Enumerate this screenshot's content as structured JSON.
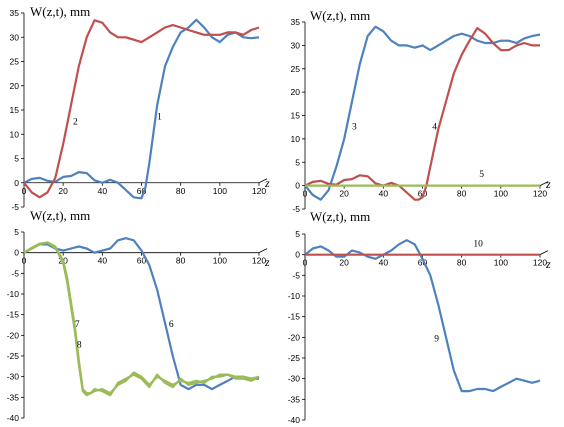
{
  "chart_data": [
    {
      "type": "line",
      "ylabel": "W(z,t), mm",
      "xlabel": "z",
      "xlim": [
        0,
        120
      ],
      "ylim": [
        -5,
        35
      ],
      "xticks": [
        0,
        20,
        40,
        60,
        80,
        100,
        120
      ],
      "yticks": [
        -5,
        0,
        5,
        10,
        15,
        20,
        25,
        30,
        35
      ],
      "grid": false,
      "series": [
        {
          "name": "1",
          "color": "#4f81bd",
          "x": [
            0,
            4,
            8,
            12,
            16,
            20,
            24,
            28,
            32,
            36,
            40,
            44,
            48,
            52,
            56,
            60,
            62,
            64,
            68,
            72,
            76,
            80,
            84,
            88,
            92,
            96,
            100,
            104,
            108,
            112,
            116,
            120
          ],
          "y": [
            0,
            0.8,
            1,
            0.4,
            0.2,
            1.2,
            1.4,
            2.2,
            2,
            0.5,
            0,
            0.6,
            0,
            -1.5,
            -3,
            -3.2,
            -1,
            4,
            16,
            24,
            28,
            31,
            32,
            33.6,
            32,
            30,
            29,
            30.5,
            31,
            30,
            29.8,
            30
          ]
        },
        {
          "name": "2",
          "color": "#c0504d",
          "x": [
            0,
            4,
            8,
            12,
            16,
            20,
            24,
            28,
            32,
            36,
            40,
            44,
            48,
            52,
            56,
            60,
            64,
            68,
            72,
            76,
            80,
            84,
            88,
            92,
            96,
            100,
            104,
            108,
            112,
            116,
            120
          ],
          "y": [
            0,
            -2,
            -3,
            -2,
            1,
            8,
            16,
            24,
            30,
            33.5,
            33,
            31,
            30,
            30,
            29.5,
            29,
            30,
            31,
            32,
            32.5,
            32,
            31.5,
            31,
            30.5,
            30.5,
            30.5,
            31,
            31,
            30.5,
            31.5,
            32
          ]
        }
      ],
      "labels": [
        {
          "text": "1",
          "x": 68,
          "y": 13
        },
        {
          "text": "2",
          "x": 25,
          "y": 12
        }
      ]
    },
    {
      "type": "line",
      "ylabel": "W(z,t), mm",
      "xlabel": "z",
      "xlim": [
        0,
        120
      ],
      "ylim": [
        -5,
        35
      ],
      "xticks": [
        0,
        20,
        40,
        60,
        80,
        100,
        120
      ],
      "yticks": [
        -5,
        0,
        5,
        10,
        15,
        20,
        25,
        30,
        35
      ],
      "grid": false,
      "series": [
        {
          "name": "3",
          "color": "#4f81bd",
          "x": [
            0,
            4,
            8,
            12,
            16,
            20,
            24,
            28,
            32,
            36,
            40,
            44,
            48,
            52,
            56,
            60,
            64,
            68,
            72,
            76,
            80,
            84,
            88,
            92,
            96,
            100,
            104,
            108,
            112,
            116,
            120
          ],
          "y": [
            0,
            -2,
            -3,
            -1,
            4,
            10,
            18,
            26,
            32,
            34,
            33,
            31,
            30,
            30,
            29.5,
            30,
            29,
            30,
            31,
            32,
            32.5,
            32,
            31,
            30.5,
            30.5,
            31,
            31,
            30.5,
            31.5,
            32,
            32.3
          ]
        },
        {
          "name": "4",
          "color": "#c0504d",
          "x": [
            0,
            4,
            8,
            12,
            16,
            20,
            24,
            28,
            32,
            36,
            40,
            44,
            48,
            52,
            56,
            58,
            60,
            62,
            64,
            68,
            72,
            76,
            80,
            84,
            88,
            92,
            96,
            100,
            104,
            108,
            112,
            116,
            120
          ],
          "y": [
            0,
            0.8,
            1,
            0.4,
            0.2,
            1.2,
            1.4,
            2.2,
            2,
            0.5,
            0,
            0.6,
            0,
            -1.5,
            -3,
            -3,
            -2.5,
            0,
            4,
            12,
            18,
            24,
            28,
            31,
            33.7,
            32.5,
            30.5,
            29,
            29,
            30,
            30.5,
            30,
            30
          ]
        },
        {
          "name": "5",
          "color": "#9bbb59",
          "x": [
            0,
            120
          ],
          "y": [
            0,
            0
          ]
        }
      ],
      "labels": [
        {
          "text": "3",
          "x": 24,
          "y": 12
        },
        {
          "text": "4",
          "x": 65,
          "y": 12
        },
        {
          "text": "5",
          "x": 89,
          "y": 1.8
        }
      ]
    },
    {
      "type": "line",
      "ylabel": "W(z,t), mm",
      "xlabel": "z",
      "xlim": [
        0,
        120
      ],
      "ylim": [
        -40,
        5
      ],
      "xticks": [
        0,
        20,
        40,
        60,
        80,
        100,
        120
      ],
      "yticks": [
        -40,
        -35,
        -30,
        -25,
        -20,
        -15,
        -10,
        -5,
        0,
        5
      ],
      "grid": false,
      "series": [
        {
          "name": "6",
          "color": "#4f81bd",
          "x": [
            0,
            4,
            8,
            12,
            16,
            20,
            24,
            28,
            32,
            36,
            40,
            44,
            48,
            52,
            56,
            60,
            64,
            68,
            72,
            76,
            80,
            84,
            88,
            92,
            96,
            100,
            104,
            108,
            112,
            116,
            120
          ],
          "y": [
            0,
            1,
            2,
            2,
            1,
            0.5,
            1,
            1.5,
            1,
            0,
            0.5,
            1,
            3,
            3.5,
            3,
            0.5,
            -3,
            -9,
            -17,
            -25,
            -32,
            -33,
            -32,
            -32,
            -33,
            -32,
            -31,
            -30,
            -30,
            -30.5,
            -30.5
          ]
        },
        {
          "name": "7",
          "color": "#9bbb59",
          "x": [
            0,
            4,
            8,
            12,
            16,
            20,
            22,
            24,
            26,
            28,
            30,
            32,
            34,
            36,
            40,
            44,
            48,
            52,
            56,
            60,
            64,
            68,
            72,
            76,
            80,
            84,
            88,
            92,
            96,
            100,
            104,
            108,
            112,
            116,
            120
          ],
          "y": [
            0,
            1,
            2,
            2.5,
            1.5,
            -2,
            -6,
            -12,
            -18,
            -26,
            -33,
            -34,
            -34,
            -33.5,
            -33,
            -34,
            -32,
            -31,
            -29,
            -30,
            -32,
            -30,
            -31,
            -32,
            -31,
            -31.5,
            -31,
            -31.5,
            -30,
            -30,
            -29.5,
            -30,
            -30,
            -30.5,
            -30
          ]
        },
        {
          "name": "8",
          "color": "#9bbb59",
          "x": [
            0,
            4,
            8,
            12,
            16,
            20,
            22,
            24,
            26,
            28,
            30,
            32,
            34,
            36,
            40,
            44,
            48,
            52,
            56,
            60,
            64,
            68,
            72,
            76,
            80,
            84,
            88,
            92,
            96,
            100,
            104,
            108,
            112,
            116,
            120
          ],
          "y": [
            0,
            1.2,
            2.2,
            2.4,
            1.2,
            -2.5,
            -7,
            -13,
            -19,
            -27,
            -33.5,
            -34.5,
            -34,
            -33,
            -33.5,
            -34.5,
            -31.5,
            -30.5,
            -29.5,
            -30.5,
            -32.5,
            -29.5,
            -31.5,
            -32.5,
            -30.5,
            -32,
            -31.5,
            -31,
            -30.5,
            -29.5,
            -29.5,
            -30.5,
            -30.5,
            -31,
            -30
          ]
        }
      ],
      "labels": [
        {
          "text": "6",
          "x": 74,
          "y": -18
        },
        {
          "text": "7",
          "x": 26,
          "y": -18
        },
        {
          "text": "8",
          "x": 27,
          "y": -23
        }
      ]
    },
    {
      "type": "line",
      "ylabel": "W(z,t), mm",
      "xlabel": "z",
      "xlim": [
        0,
        120
      ],
      "ylim": [
        -40,
        5
      ],
      "xticks": [
        0,
        20,
        40,
        60,
        80,
        100,
        120
      ],
      "yticks": [
        -40,
        -35,
        -30,
        -25,
        -20,
        -15,
        -10,
        -5,
        0,
        5
      ],
      "grid": false,
      "series": [
        {
          "name": "9",
          "color": "#4f81bd",
          "x": [
            0,
            4,
            8,
            12,
            16,
            20,
            24,
            28,
            32,
            36,
            40,
            44,
            48,
            52,
            56,
            60,
            64,
            68,
            72,
            76,
            80,
            84,
            88,
            92,
            96,
            100,
            104,
            108,
            112,
            116,
            120
          ],
          "y": [
            0,
            1.5,
            2,
            1,
            -0.5,
            -0.5,
            1,
            0.5,
            -0.5,
            -1,
            0,
            1,
            2.5,
            3.5,
            2.5,
            -1,
            -5,
            -12,
            -20,
            -28,
            -33,
            -33,
            -32.5,
            -32.5,
            -33,
            -32,
            -31,
            -30,
            -30.5,
            -31,
            -30.5
          ]
        },
        {
          "name": "10",
          "color": "#c0504d",
          "x": [
            0,
            120
          ],
          "y": [
            0,
            0
          ]
        }
      ],
      "labels": [
        {
          "text": "9",
          "x": 66,
          "y": -21
        },
        {
          "text": "10",
          "x": 86,
          "y": 2
        }
      ]
    }
  ]
}
